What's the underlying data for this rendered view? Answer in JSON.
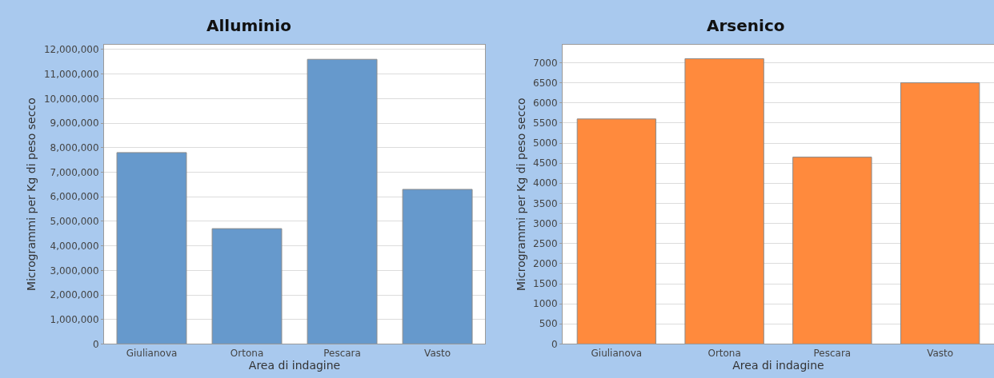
{
  "chart_data": [
    {
      "type": "bar",
      "title": "Alluminio",
      "xlabel": "Area di indagine",
      "ylabel": "Microgrammi per Kg di peso secco",
      "categories": [
        "Giulianova",
        "Ortona",
        "Pescara",
        "Vasto"
      ],
      "values": [
        7800000,
        4700000,
        11600000,
        6300000
      ],
      "color": "#6699cc",
      "ylim": [
        0,
        12200000
      ],
      "yticks": [
        0,
        {
          "value": 1000000,
          "label": "1,000,000"
        },
        {
          "value": 2000000,
          "label": "2,000,000"
        },
        {
          "value": 3000000,
          "label": "3,000,000"
        },
        {
          "value": 4000000,
          "label": "4,000,000"
        },
        {
          "value": 5000000,
          "label": "5,000,000"
        },
        {
          "value": 6000000,
          "label": "6,000,000"
        },
        {
          "value": 7000000,
          "label": "7,000,000"
        },
        {
          "value": 8000000,
          "label": "8,000,000"
        },
        {
          "value": 9000000,
          "label": "9,000,000"
        },
        {
          "value": 10000000,
          "label": "10,000,000"
        },
        {
          "value": 11000000,
          "label": "11,000,000"
        },
        {
          "value": 12000000,
          "label": "12,000,000"
        }
      ],
      "grid": "y"
    },
    {
      "type": "bar",
      "title": "Arsenico",
      "xlabel": "Area di indagine",
      "ylabel": "Microgrammi per Kg di peso secco",
      "categories": [
        "Giulianova",
        "Ortona",
        "Pescara",
        "Vasto"
      ],
      "values": [
        5600,
        7100,
        4650,
        6500
      ],
      "color": "#ff8a3d",
      "ylim": [
        0,
        7450
      ],
      "yticks": [
        0,
        500,
        1000,
        1500,
        2000,
        2500,
        3000,
        3500,
        4000,
        4500,
        5000,
        5500,
        6000,
        6500,
        7000
      ],
      "grid": "y"
    }
  ]
}
